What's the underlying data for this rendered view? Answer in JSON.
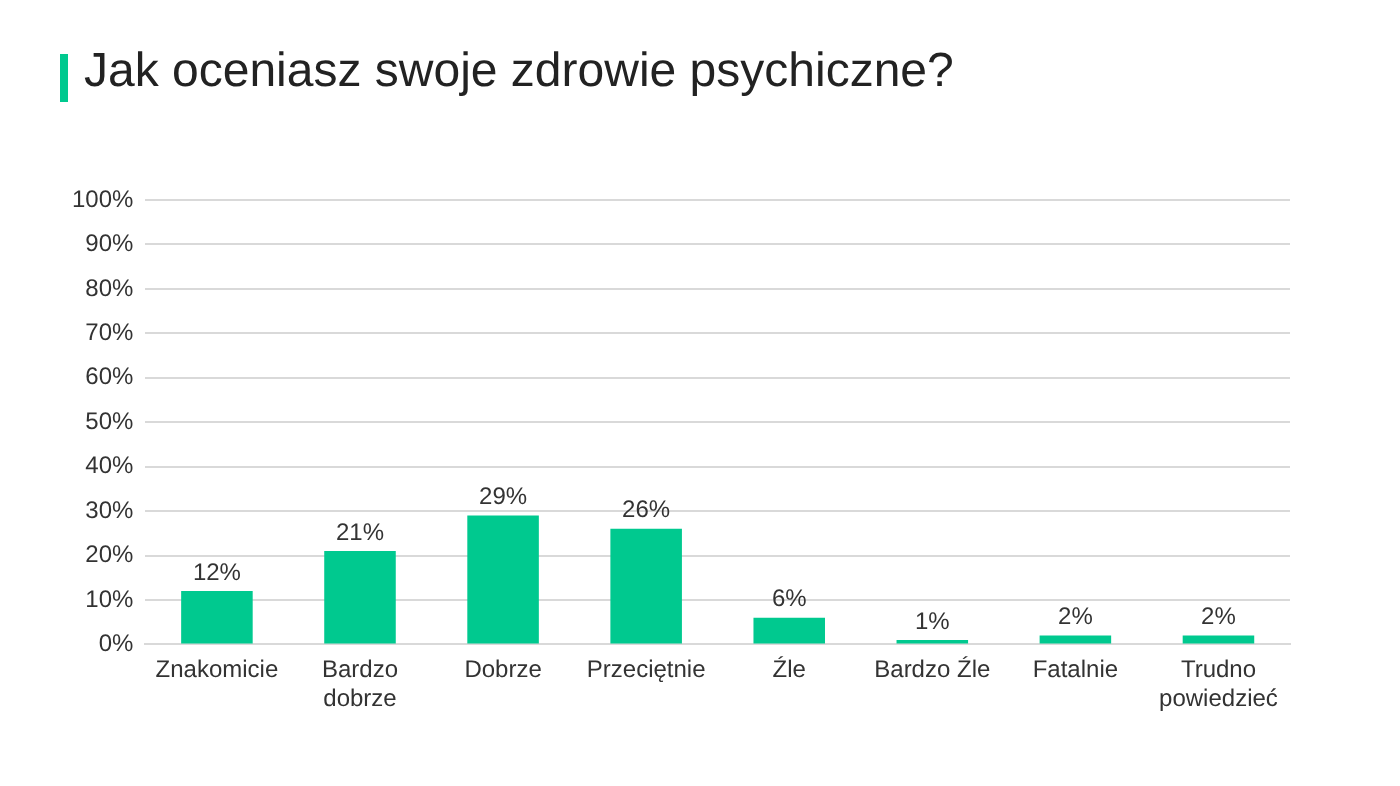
{
  "chart_data": {
    "type": "bar",
    "title": "Jak oceniasz swoje zdrowie psychiczne?",
    "categories": [
      "Znakomicie",
      "Bardzo dobrze",
      "Dobrze",
      "Przeciętnie",
      "Źle",
      "Bardzo Źle",
      "Fatalnie",
      "Trudno powiedzieć"
    ],
    "values": [
      12,
      21,
      29,
      26,
      6,
      1,
      2,
      2
    ],
    "value_labels": [
      "12%",
      "21%",
      "29%",
      "26%",
      "6%",
      "1%",
      "2%",
      "2%"
    ],
    "color": "#00c98f",
    "ylim": [
      0,
      100
    ],
    "yticks": [
      {
        "value": 0,
        "label": "0%"
      },
      {
        "value": 10,
        "label": "10%"
      },
      {
        "value": 20,
        "label": "20%"
      },
      {
        "value": 30,
        "label": "30%"
      },
      {
        "value": 40,
        "label": "40%"
      },
      {
        "value": 50,
        "label": "50%"
      },
      {
        "value": 60,
        "label": "60%"
      },
      {
        "value": 70,
        "label": "70%"
      },
      {
        "value": 80,
        "label": "80%"
      },
      {
        "value": 90,
        "label": "90%"
      },
      {
        "value": 100,
        "label": "100%"
      }
    ],
    "grid": "y"
  }
}
